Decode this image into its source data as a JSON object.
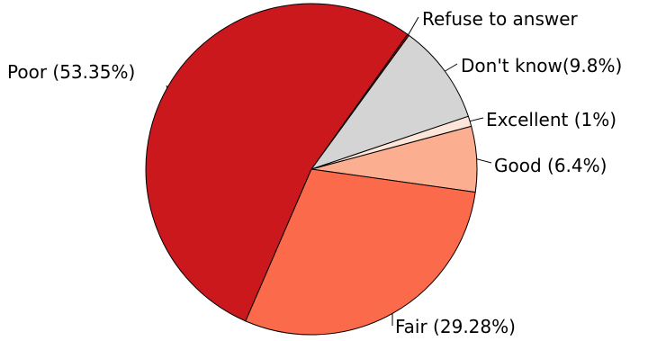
{
  "chart_data": {
    "type": "pie",
    "title": "",
    "slices": [
      {
        "label": "Good (6.4%)",
        "category": "Good",
        "value": 6.4,
        "color": "#fcae91"
      },
      {
        "label": "Excellent (1%)",
        "category": "Excellent",
        "value": 1,
        "color": "#fee5d9"
      },
      {
        "label": "Don't know(9.8%)",
        "category": "Don't know",
        "value": 9.8,
        "color": "#d4d4d4"
      },
      {
        "label": "Refuse to answer",
        "category": "Refuse to answer",
        "value": 0.17,
        "color": "#a50f15"
      },
      {
        "label": "Poor (53.35%)",
        "category": "Poor",
        "value": 53.35,
        "color": "#cb181d"
      },
      {
        "label": "Fair (29.28%)",
        "category": "Fair",
        "value": 29.28,
        "color": "#fb6a4a"
      }
    ],
    "start_angle_deg": -8,
    "direction": "counterclockwise",
    "legend": "none"
  }
}
